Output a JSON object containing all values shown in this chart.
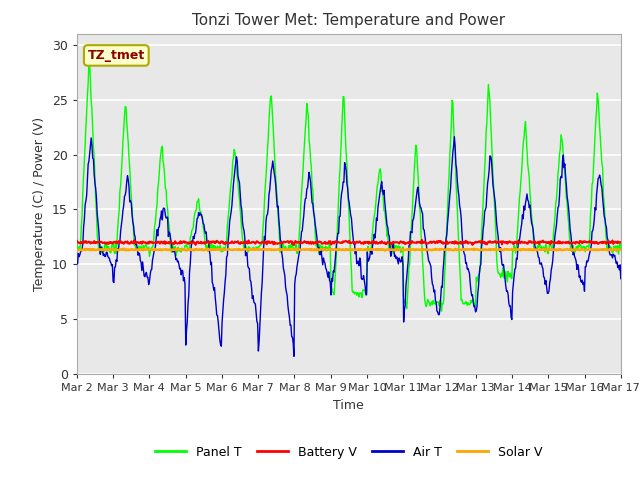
{
  "title": "Tonzi Tower Met: Temperature and Power",
  "xlabel": "Time",
  "ylabel": "Temperature (C) / Power (V)",
  "ylim": [
    0,
    31
  ],
  "yticks": [
    0,
    5,
    10,
    15,
    20,
    25,
    30
  ],
  "annotation_text": "TZ_tmet",
  "annotation_color": "#8B0000",
  "annotation_bg": "#FFFFCC",
  "annotation_border": "#AAAA00",
  "fig_facecolor": "#FFFFFF",
  "plot_bg": "#E8E8E8",
  "grid_color": "#FFFFFF",
  "legend_labels": [
    "Panel T",
    "Battery V",
    "Air T",
    "Solar V"
  ],
  "line_colors": {
    "panel_t": "#00FF00",
    "battery_v": "#FF0000",
    "air_t": "#0000CC",
    "solar_v": "#FFA500"
  },
  "x_tick_labels": [
    "Mar 2",
    "Mar 3",
    "Mar 4",
    "Mar 5",
    "Mar 6",
    "Mar 7",
    "Mar 8",
    "Mar 9",
    "Mar 10",
    "Mar 11",
    "Mar 12",
    "Mar 13",
    "Mar 14",
    "Mar 15",
    "Mar 16",
    "Mar 17"
  ],
  "num_days": 15,
  "points_per_day": 48,
  "panel_peaks": [
    29,
    25,
    21,
    16,
    21,
    26,
    25,
    26,
    19,
    21.5,
    25.5,
    27,
    23,
    22,
    26
  ],
  "panel_troughs": [
    11.5,
    11.5,
    11.5,
    11.5,
    11.5,
    11.5,
    11.5,
    7.5,
    11.5,
    6.5,
    6.5,
    9,
    11.5,
    11.5,
    11.5
  ],
  "air_peaks": [
    22,
    18,
    15.5,
    15,
    20,
    19.5,
    18.5,
    19,
    17.5,
    17,
    21.5,
    20,
    16.5,
    20,
    18.5
  ],
  "air_troughs": [
    10,
    8.5,
    8.5,
    2.5,
    4.5,
    2,
    8.5,
    7.5,
    10,
    5,
    6,
    5.5,
    7.5,
    7.5,
    9.5
  ],
  "battery_base": 12.0,
  "solar_base": 11.35,
  "title_fontsize": 11,
  "axis_label_fontsize": 9,
  "tick_fontsize": 8
}
